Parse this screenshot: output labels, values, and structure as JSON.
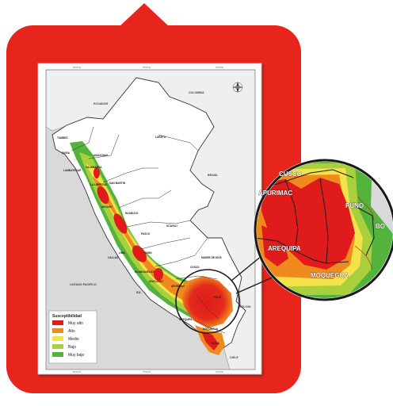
{
  "colors": {
    "frame": "#e8251c",
    "very_high": "#e01b1b",
    "high": "#f08a1e",
    "medium": "#f3e24a",
    "low": "#a8cf3c",
    "very_low": "#54b33c",
    "ocean": "#d9d9d9",
    "land": "#ffffff"
  },
  "legend": {
    "title": "Susceptibilidad",
    "items": [
      {
        "label": "Muy alto",
        "color": "#e01b1b"
      },
      {
        "label": "Alto",
        "color": "#f08a1e"
      },
      {
        "label": "Medio",
        "color": "#f3e24a"
      },
      {
        "label": "Bajo",
        "color": "#a8cf3c"
      },
      {
        "label": "Muy bajo",
        "color": "#54b33c"
      }
    ]
  },
  "countries": {
    "ecuador": "ECUADOR",
    "colombia": "COLOMBIA",
    "brasil": "BRASIL",
    "bolivia": "BOLIVIA",
    "chile": "CHILE",
    "ocean": "OCEANO PACIFICO"
  },
  "regions": {
    "tumbes": "TUMBES",
    "piura": "PIURA",
    "lambayeque": "LAMBAYEQUE",
    "cajamarca": "CAJAMARCA",
    "amazonas": "AMAZONAS",
    "loreto": "LORETO",
    "san_martin": "SAN MARTIN",
    "la_libertad": "LA LIBERTAD",
    "ancash": "ANCASH",
    "huanuco": "HUANUCO",
    "pasco": "PASCO",
    "ucayali": "UCAYALI",
    "lima": "LIMA",
    "junin": "JUNIN",
    "callao": "CALLAO",
    "huancavelica": "HUANCAVELICA",
    "ica": "ICA",
    "ayacucho": "AYACUCHO",
    "apurimac": "APURIMAC",
    "cusco": "CUSCO",
    "madre_de_dios": "MADRE DE DIOS",
    "puno": "PUNO",
    "arequipa": "AREQUIPA",
    "moquegua": "MOQUEGUA",
    "tacna": "TACNA"
  },
  "zoom": {
    "cusco": "CUSCO",
    "apurimac": "APURIMAC",
    "puno": "PUNO",
    "arequipa": "AREQUIPA",
    "moquegua": "MOQUEGUA",
    "bolivia": "BO"
  },
  "coords": {
    "top": [
      "80°0'0\"W",
      "75°0'0\"W",
      "70°0'0\"W"
    ],
    "bottom": [
      "80°0'0\"W",
      "75°0'0\"W",
      "70°0'0\"W"
    ]
  }
}
